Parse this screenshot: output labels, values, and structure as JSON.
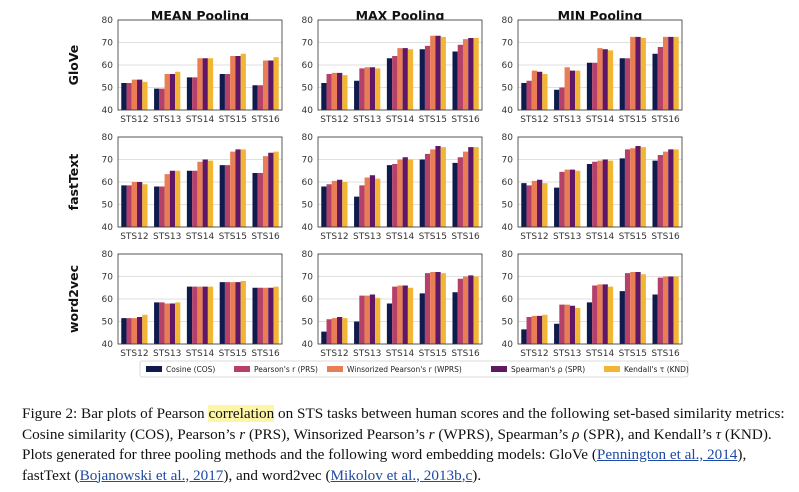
{
  "chart_data": {
    "type": "bar",
    "grid": "horizontal",
    "legend_position": "bottom-center",
    "y_ticks": [
      40,
      50,
      60,
      70,
      80
    ],
    "ylim": [
      40,
      80
    ],
    "categories": [
      "STS12",
      "STS13",
      "STS14",
      "STS15",
      "STS16"
    ],
    "columns": [
      "MEAN Pooling",
      "MAX Pooling",
      "MIN Pooling"
    ],
    "rows": [
      "GloVe",
      "fastText",
      "word2vec"
    ],
    "series": [
      {
        "name": "Cosine (COS)",
        "color": "#0f1b4d"
      },
      {
        "name": "Pearson's r (PRS)",
        "color": "#b5416a"
      },
      {
        "name": "Winsorized Pearson's r (WPRS)",
        "color": "#e97d53"
      },
      {
        "name": "Spearman's ρ (SPR)",
        "color": "#5f1766"
      },
      {
        "name": "Kendall's τ (KND)",
        "color": "#f2b634"
      }
    ],
    "panels": [
      {
        "row": "GloVe",
        "column": "MEAN Pooling",
        "values": [
          [
            52,
            49.5,
            54.5,
            56,
            51
          ],
          [
            52,
            49.5,
            54.5,
            56,
            51
          ],
          [
            53.5,
            56,
            63,
            64,
            62
          ],
          [
            53.5,
            56,
            63,
            64,
            62
          ],
          [
            52.5,
            57,
            63,
            65,
            63.5
          ]
        ]
      },
      {
        "row": "GloVe",
        "column": "MAX Pooling",
        "values": [
          [
            52,
            53,
            63,
            67,
            66
          ],
          [
            56,
            58.5,
            64,
            68.5,
            69
          ],
          [
            56.5,
            59,
            67.5,
            73,
            71.5
          ],
          [
            56.5,
            59,
            67.5,
            73,
            72
          ],
          [
            55.5,
            58.5,
            67,
            72.5,
            72
          ]
        ]
      },
      {
        "row": "GloVe",
        "column": "MIN Pooling",
        "values": [
          [
            52,
            49,
            61,
            63,
            65
          ],
          [
            53,
            50,
            61,
            63,
            68
          ],
          [
            57.5,
            59,
            67.5,
            72.5,
            72.5
          ],
          [
            57,
            57.5,
            67,
            72.5,
            72.5
          ],
          [
            56,
            57.5,
            66.5,
            72,
            72.5
          ]
        ]
      },
      {
        "row": "fastText",
        "column": "MEAN Pooling",
        "values": [
          [
            58.5,
            58,
            65,
            67.5,
            64
          ],
          [
            58.5,
            58,
            65,
            67.5,
            64
          ],
          [
            60,
            63.5,
            69,
            73.5,
            71.5
          ],
          [
            60,
            65,
            70,
            74.5,
            73
          ],
          [
            59,
            65,
            69.5,
            74.5,
            73.5
          ]
        ]
      },
      {
        "row": "fastText",
        "column": "MAX Pooling",
        "values": [
          [
            58,
            53.5,
            67.5,
            70,
            68.5
          ],
          [
            59,
            58.5,
            68,
            72.5,
            71
          ],
          [
            60.5,
            62,
            70,
            74.5,
            73.5
          ],
          [
            61,
            63,
            71,
            76,
            75.5
          ],
          [
            60,
            61.5,
            70,
            75.5,
            75.5
          ]
        ]
      },
      {
        "row": "fastText",
        "column": "MIN Pooling",
        "values": [
          [
            59.5,
            57.5,
            68,
            70.5,
            69.5
          ],
          [
            58.5,
            64.5,
            69,
            74.5,
            72
          ],
          [
            60.5,
            65.5,
            69.5,
            75,
            73.5
          ],
          [
            61,
            65.5,
            70,
            76,
            74.5
          ],
          [
            59.5,
            65,
            69.5,
            75.5,
            74.5
          ]
        ]
      },
      {
        "row": "word2vec",
        "column": "MEAN Pooling",
        "values": [
          [
            51.5,
            58.5,
            65.5,
            67.5,
            65
          ],
          [
            51.5,
            58.5,
            65.5,
            67.5,
            65
          ],
          [
            51.5,
            58,
            65.5,
            67.5,
            65
          ],
          [
            52,
            58,
            65.5,
            67.5,
            65
          ],
          [
            53,
            58.5,
            65.5,
            68,
            65.5
          ]
        ]
      },
      {
        "row": "word2vec",
        "column": "MAX Pooling",
        "values": [
          [
            45.5,
            50,
            58,
            62.5,
            63
          ],
          [
            51,
            61.5,
            65.5,
            71.5,
            69
          ],
          [
            51.5,
            61.5,
            66,
            72,
            70
          ],
          [
            52,
            62,
            66,
            72,
            70.5
          ],
          [
            51.5,
            60.5,
            65,
            71.5,
            70
          ]
        ]
      },
      {
        "row": "word2vec",
        "column": "MIN Pooling",
        "values": [
          [
            46.5,
            49,
            58.5,
            63.5,
            62
          ],
          [
            52,
            57.5,
            66,
            71.5,
            69.5
          ],
          [
            52.5,
            57.5,
            66.5,
            72,
            70
          ],
          [
            52.5,
            57,
            66.5,
            72,
            70
          ],
          [
            53,
            56,
            65.5,
            71,
            70
          ]
        ]
      }
    ]
  },
  "caption": {
    "p1": "Figure 2: Bar plots of Pearson ",
    "highlight": "correlation",
    "p2": " on STS tasks between human scores and the following set-based similarity metrics: Cosine similarity (COS), Pearson’s ",
    "v1": "r",
    "p3": " (PRS), Winsorized Pearson’s ",
    "v2": "r",
    "p4": " (WPRS), Spearman’s ",
    "v3": "ρ",
    "p5": " (SPR), and Kendall’s ",
    "v4": "τ",
    "p6": " (KND). Plots generated for three pooling methods and the following word embedding models: GloVe (",
    "cite1": "Pennington et al., 2014",
    "p7": "), fastText (",
    "cite2": "Bojanowski et al., 2017",
    "p8": "), and word2vec (",
    "cite3": "Mikolov et al., 2013b,c",
    "p9": ")."
  }
}
